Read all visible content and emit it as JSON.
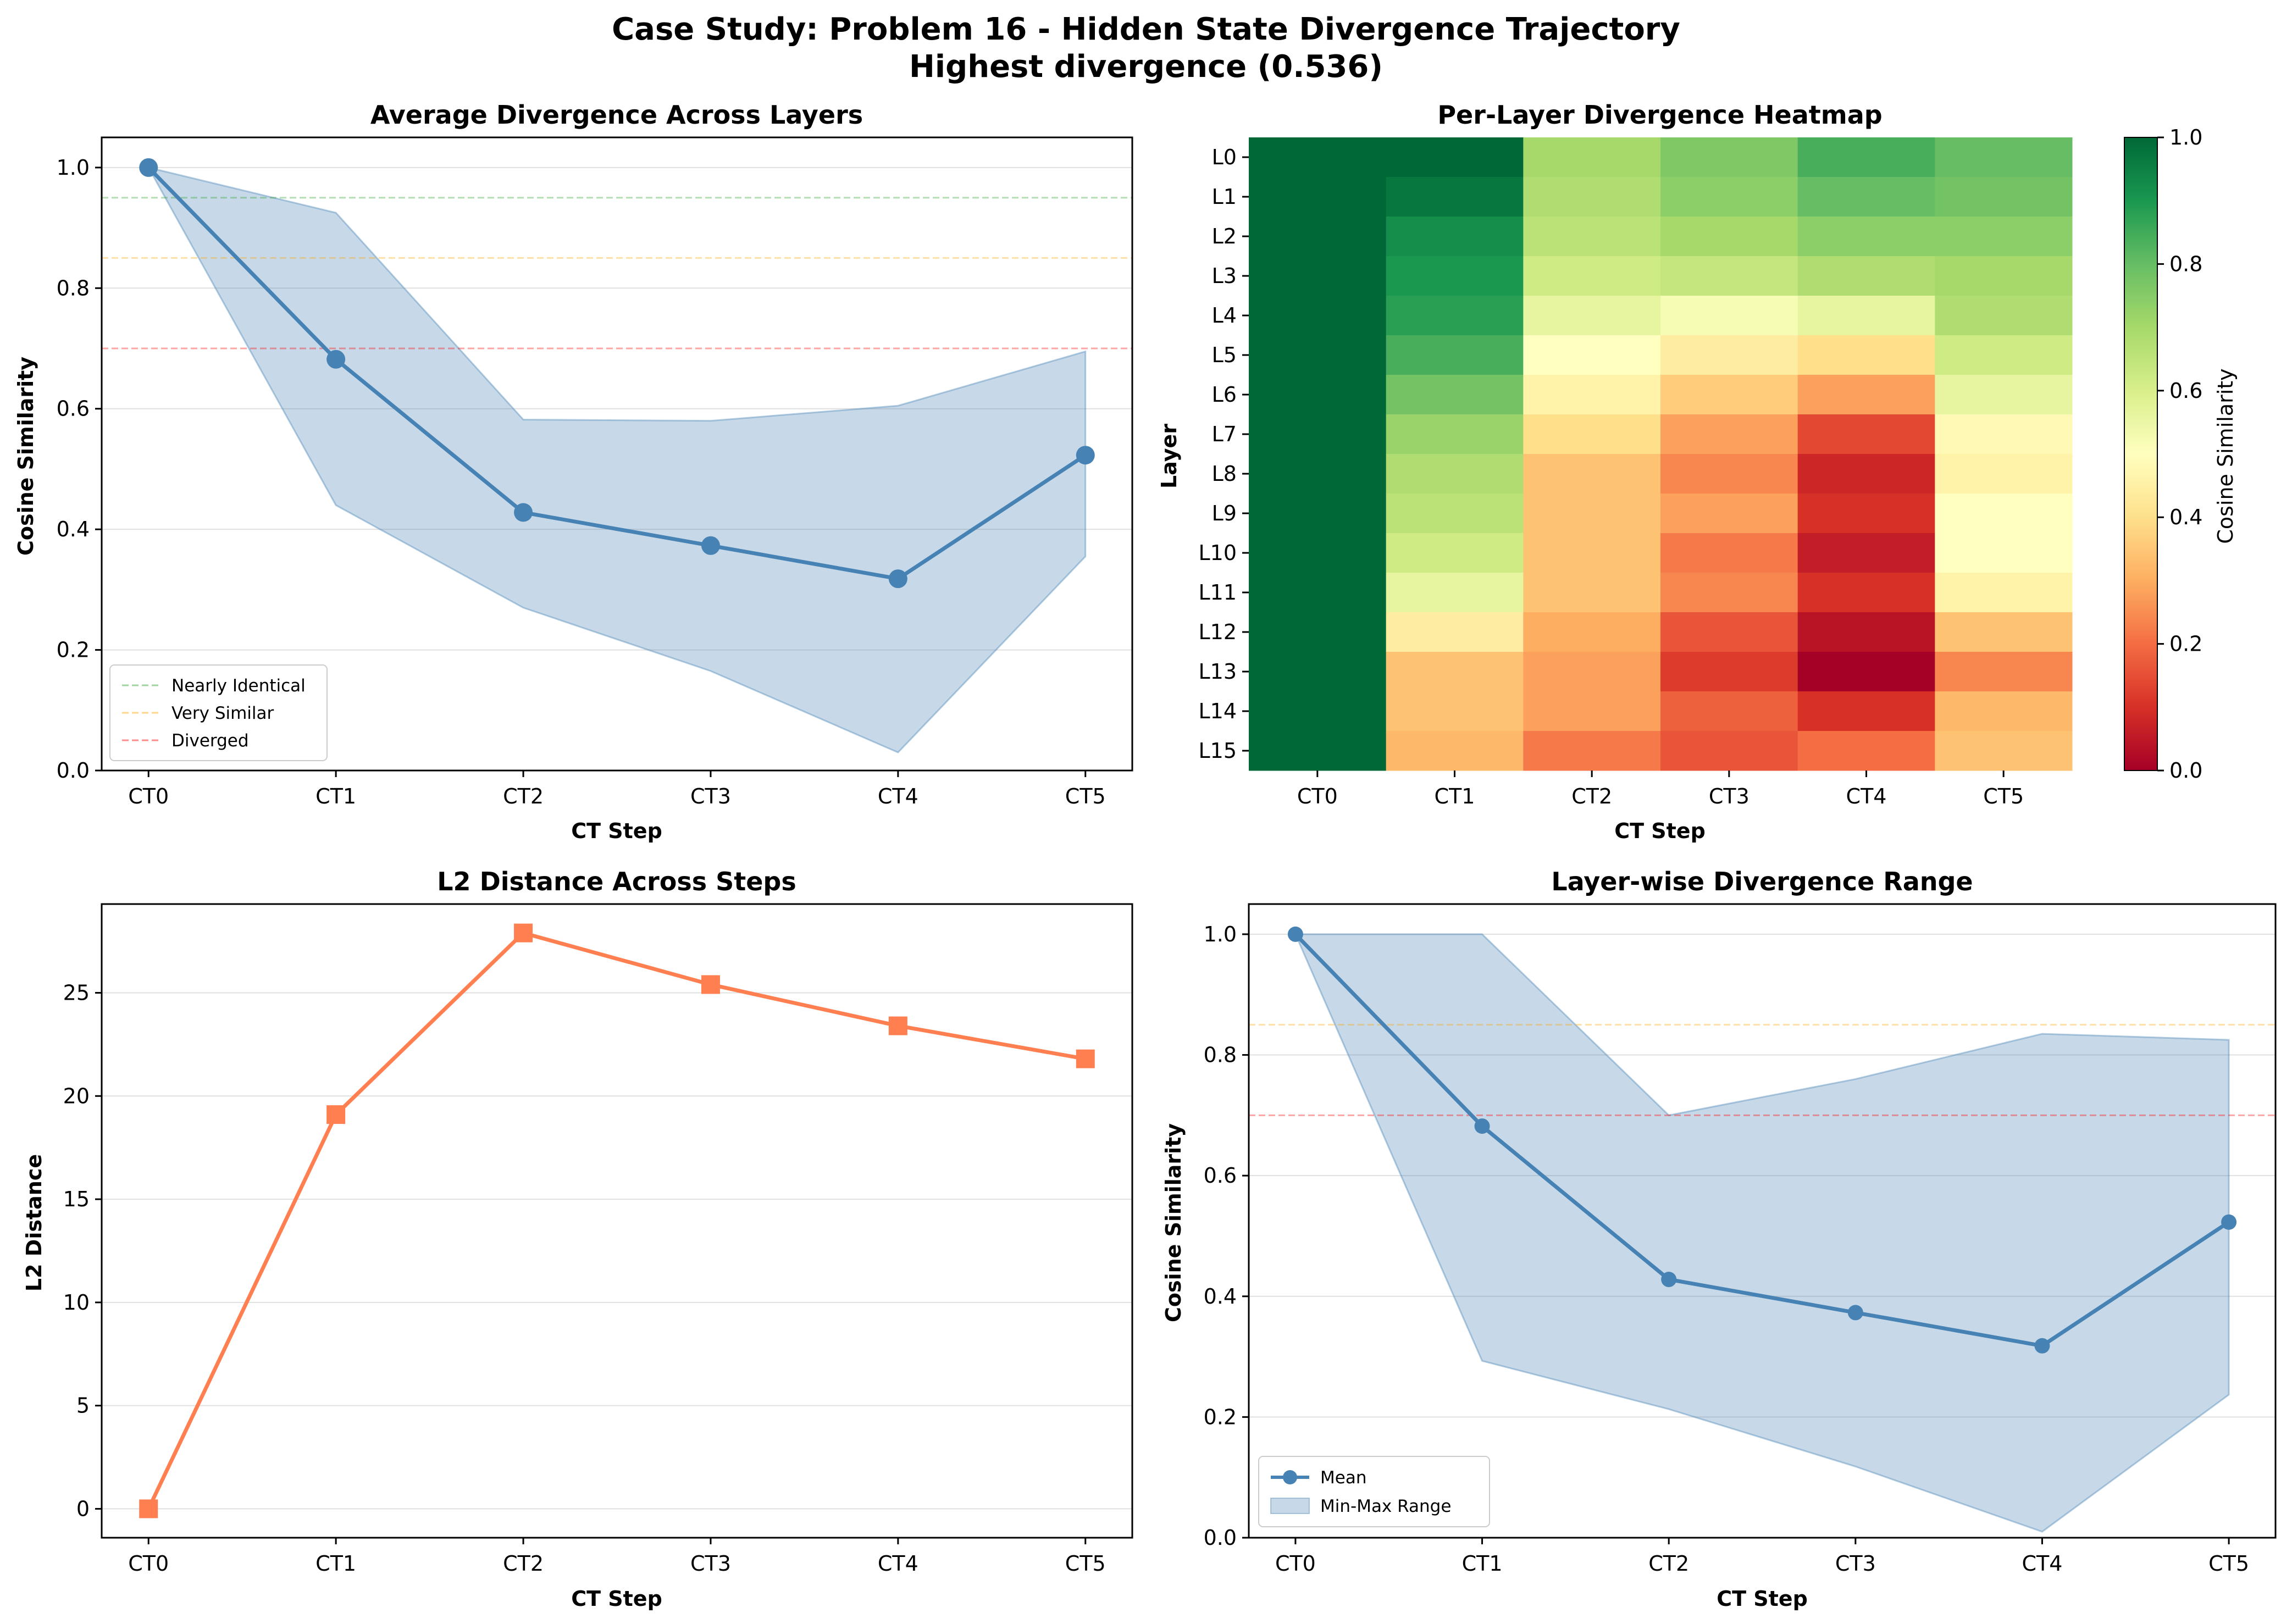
{
  "suptitle_line1": "Case Study: Problem 16 - Hidden State Divergence Trajectory",
  "suptitle_line2": "Highest divergence (0.536)",
  "chart_data": [
    {
      "type": "line",
      "title": "Average Divergence Across Layers",
      "xlabel": "CT Step",
      "ylabel": "Cosine Similarity",
      "categories": [
        "CT0",
        "CT1",
        "CT2",
        "CT3",
        "CT4",
        "CT5"
      ],
      "ylim": [
        0,
        1.05
      ],
      "yticks": [
        "0.0",
        "0.2",
        "0.4",
        "0.6",
        "0.8",
        "1.0"
      ],
      "grid": "horizontal",
      "series": [
        {
          "values": [
            1.0,
            0.682,
            0.428,
            0.373,
            0.318,
            0.523
          ],
          "color": "#4682b4"
        }
      ],
      "band": {
        "lower": [
          1.0,
          0.44,
          0.27,
          0.165,
          0.03,
          0.355
        ],
        "upper": [
          1.0,
          0.925,
          0.582,
          0.58,
          0.605,
          0.695
        ],
        "color": "#4682b4"
      },
      "reference_lines": [
        {
          "name": "Nearly Identical",
          "value": 0.95,
          "color": "#2ca02c"
        },
        {
          "name": "Very Similar",
          "value": 0.85,
          "color": "#ffa500"
        },
        {
          "name": "Diverged",
          "value": 0.7,
          "color": "#ff0000"
        }
      ],
      "legend": "lower-left"
    },
    {
      "type": "heatmap",
      "title": "Per-Layer Divergence Heatmap",
      "xlabel": "CT Step",
      "ylabel": "Layer",
      "columns": [
        "CT0",
        "CT1",
        "CT2",
        "CT3",
        "CT4",
        "CT5"
      ],
      "rows": [
        "L0",
        "L1",
        "L2",
        "L3",
        "L4",
        "L5",
        "L6",
        "L7",
        "L8",
        "L9",
        "L10",
        "L11",
        "L12",
        "L13",
        "L14",
        "L15"
      ],
      "values": [
        [
          1.0,
          1.0,
          0.7,
          0.76,
          0.84,
          0.8
        ],
        [
          1.0,
          0.97,
          0.68,
          0.74,
          0.8,
          0.78
        ],
        [
          1.0,
          0.92,
          0.66,
          0.7,
          0.74,
          0.74
        ],
        [
          1.0,
          0.9,
          0.62,
          0.64,
          0.68,
          0.7
        ],
        [
          1.0,
          0.88,
          0.56,
          0.52,
          0.56,
          0.68
        ],
        [
          1.0,
          0.84,
          0.5,
          0.44,
          0.4,
          0.62
        ],
        [
          1.0,
          0.78,
          0.46,
          0.36,
          0.28,
          0.56
        ],
        [
          1.0,
          0.72,
          0.4,
          0.28,
          0.14,
          0.48
        ],
        [
          1.0,
          0.68,
          0.34,
          0.24,
          0.08,
          0.46
        ],
        [
          1.0,
          0.66,
          0.34,
          0.28,
          0.1,
          0.5
        ],
        [
          1.0,
          0.62,
          0.34,
          0.22,
          0.06,
          0.5
        ],
        [
          1.0,
          0.56,
          0.34,
          0.24,
          0.1,
          0.46
        ],
        [
          1.0,
          0.44,
          0.3,
          0.16,
          0.04,
          0.34
        ],
        [
          1.0,
          0.34,
          0.28,
          0.12,
          0.0,
          0.24
        ],
        [
          1.0,
          0.34,
          0.28,
          0.18,
          0.1,
          0.32
        ],
        [
          1.0,
          0.32,
          0.22,
          0.16,
          0.2,
          0.34
        ]
      ],
      "vmin": 0.0,
      "vmax": 1.0,
      "colormap": "RdYlGn",
      "colorbar_label": "Cosine Similarity",
      "colorbar_ticks": [
        "0.0",
        "0.2",
        "0.4",
        "0.6",
        "0.8",
        "1.0"
      ]
    },
    {
      "type": "line",
      "title": "L2 Distance Across Steps",
      "xlabel": "CT Step",
      "ylabel": "L2 Distance",
      "categories": [
        "CT0",
        "CT1",
        "CT2",
        "CT3",
        "CT4",
        "CT5"
      ],
      "ylim": [
        -1.4,
        29.3
      ],
      "yticks": [
        "0",
        "5",
        "10",
        "15",
        "20",
        "25"
      ],
      "grid": "horizontal",
      "series": [
        {
          "values": [
            0.0,
            19.1,
            27.9,
            25.4,
            23.4,
            21.8
          ],
          "color": "#ff7f50",
          "marker": "square"
        }
      ]
    },
    {
      "type": "line",
      "title": "Layer-wise Divergence Range",
      "xlabel": "CT Step",
      "ylabel": "Cosine Similarity",
      "categories": [
        "CT0",
        "CT1",
        "CT2",
        "CT3",
        "CT4",
        "CT5"
      ],
      "ylim": [
        0,
        1.05
      ],
      "yticks": [
        "0.0",
        "0.2",
        "0.4",
        "0.6",
        "0.8",
        "1.0"
      ],
      "grid": "horizontal",
      "series": [
        {
          "name": "Mean",
          "values": [
            1.0,
            0.682,
            0.428,
            0.373,
            0.318,
            0.523
          ],
          "color": "#4682b4"
        }
      ],
      "band": {
        "name": "Min-Max Range",
        "lower": [
          1.0,
          0.293,
          0.213,
          0.118,
          0.01,
          0.237
        ],
        "upper": [
          1.0,
          1.0,
          0.7,
          0.76,
          0.835,
          0.825
        ],
        "color": "#4682b4"
      },
      "reference_lines": [
        {
          "value": 0.85,
          "color": "#ffa500"
        },
        {
          "value": 0.7,
          "color": "#ff0000"
        }
      ],
      "legend": "lower-left"
    }
  ]
}
